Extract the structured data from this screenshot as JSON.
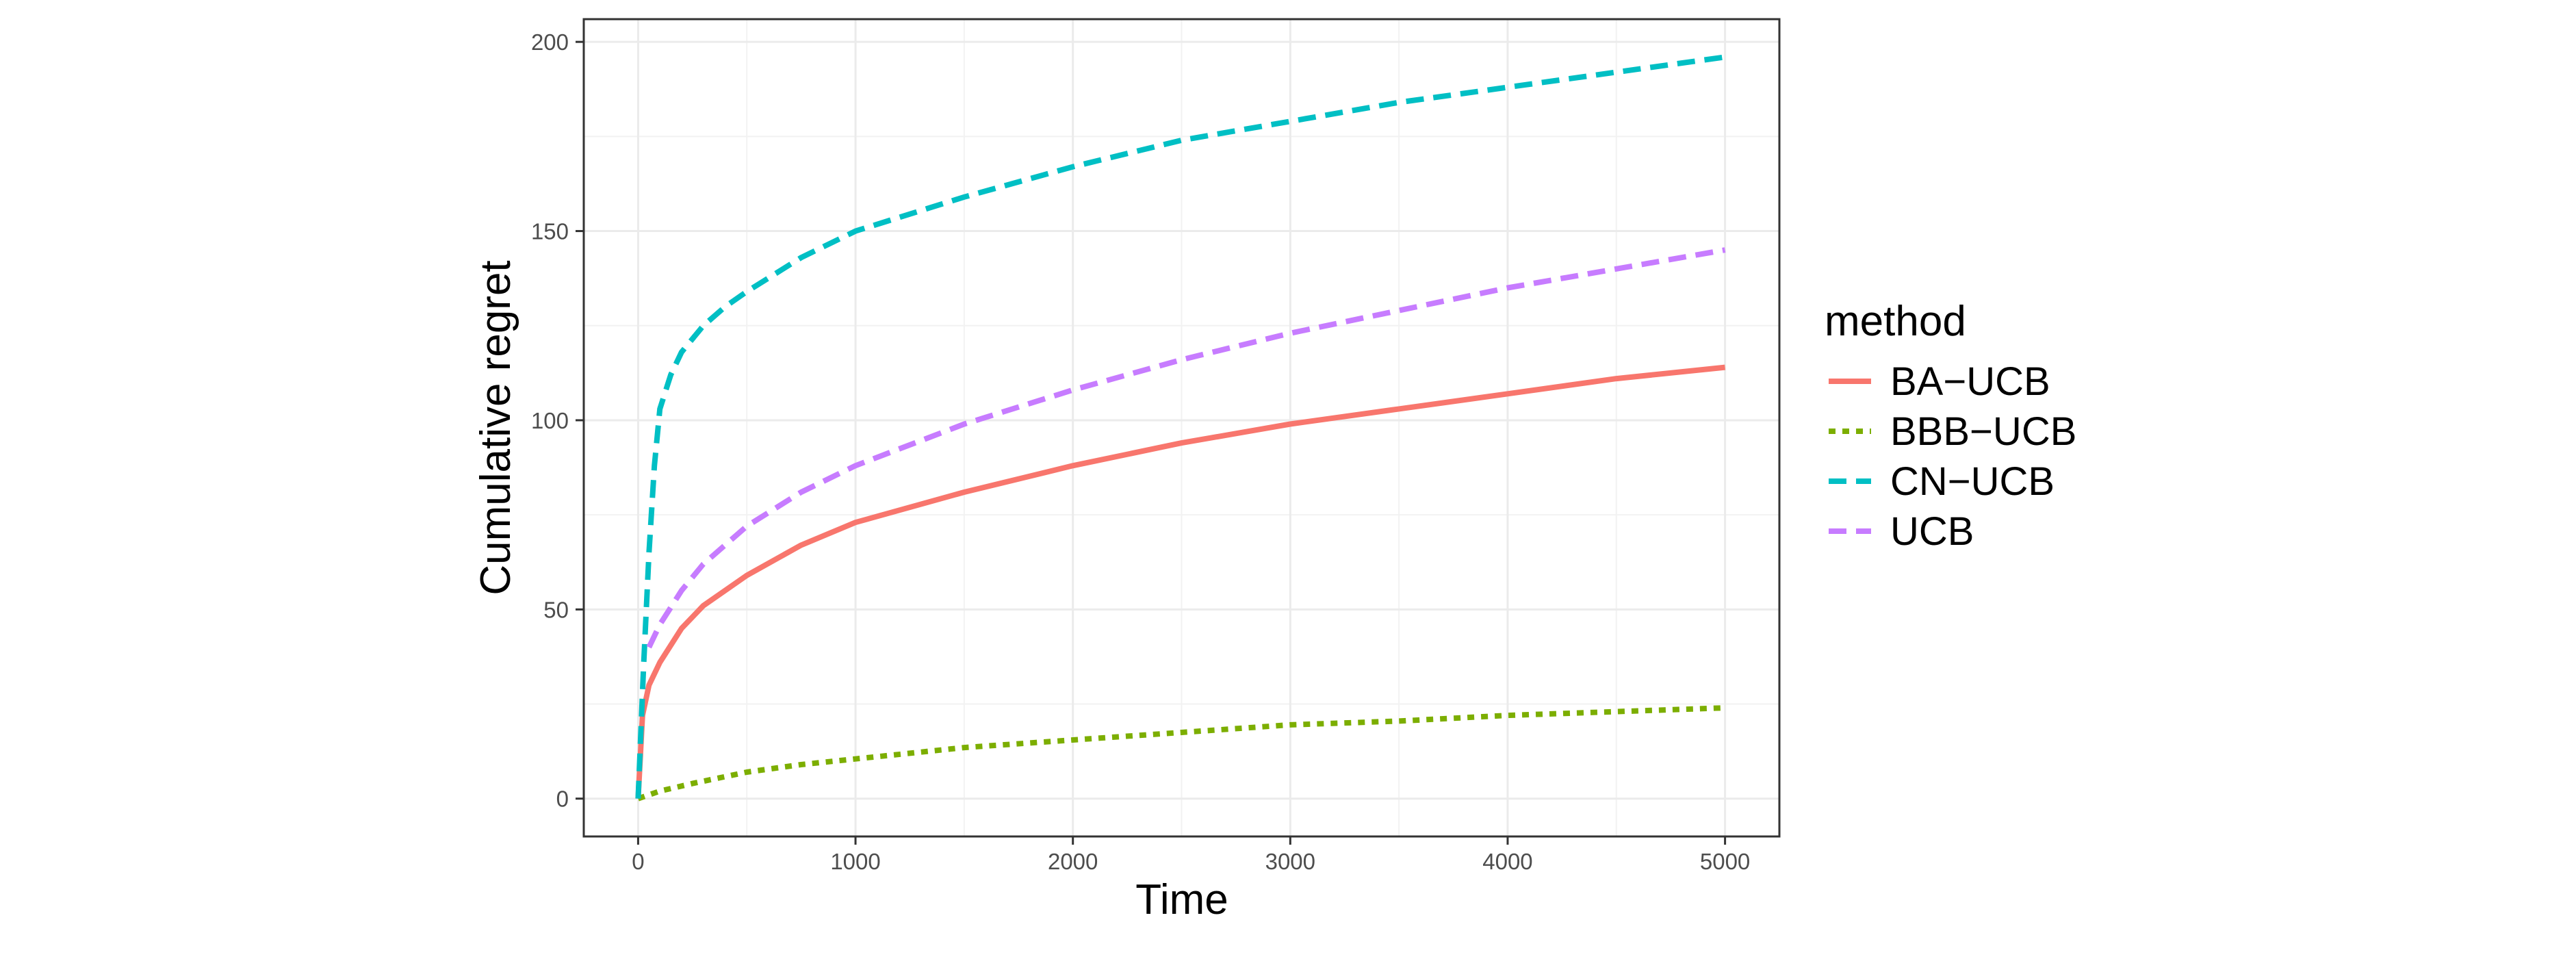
{
  "chart_data": {
    "type": "line",
    "title": "",
    "xlabel": "Time",
    "ylabel": "Cumulative regret",
    "xlim": [
      -250,
      5250
    ],
    "ylim": [
      -10,
      206
    ],
    "x_ticks": [
      0,
      1000,
      2000,
      3000,
      4000,
      5000
    ],
    "x_tick_labels": [
      "0",
      "1000",
      "2000",
      "3000",
      "4000",
      "5000"
    ],
    "y_ticks": [
      0,
      50,
      100,
      150,
      200
    ],
    "y_tick_labels": [
      "0",
      "50",
      "100",
      "150",
      "200"
    ],
    "grid": true,
    "legend": {
      "title": "method",
      "position": "right"
    },
    "series": [
      {
        "name": "BA−UCB",
        "color": "#F8766D",
        "dash": "solid",
        "x": [
          0,
          20,
          50,
          100,
          200,
          300,
          500,
          750,
          1000,
          1500,
          2000,
          2500,
          3000,
          3500,
          4000,
          4500,
          5000
        ],
        "y": [
          0,
          22,
          30,
          36,
          45,
          51,
          59,
          67,
          73,
          81,
          88,
          94,
          99,
          103,
          107,
          111,
          114
        ]
      },
      {
        "name": "BBB−UCB",
        "color": "#7CAE00",
        "dash": "dotted",
        "x": [
          0,
          100,
          250,
          500,
          750,
          1000,
          1500,
          2000,
          2500,
          3000,
          3500,
          4000,
          4500,
          5000
        ],
        "y": [
          0,
          2,
          4,
          7,
          9,
          10.5,
          13.5,
          15.5,
          17.5,
          19.5,
          20.5,
          22,
          23,
          24
        ]
      },
      {
        "name": "CN−UCB",
        "color": "#00BFC4",
        "dash": "dashed",
        "x": [
          0,
          25,
          50,
          75,
          100,
          150,
          200,
          300,
          400,
          500,
          750,
          1000,
          1500,
          2000,
          2500,
          3000,
          3500,
          4000,
          4500,
          5000
        ],
        "y": [
          0,
          35,
          65,
          88,
          103,
          112,
          118,
          125,
          130,
          134,
          143,
          150,
          159,
          167,
          174,
          179,
          184,
          188,
          192,
          196
        ]
      },
      {
        "name": "UCB",
        "color": "#C77CFF",
        "dash": "dashed",
        "x": [
          50,
          100,
          200,
          300,
          500,
          750,
          1000,
          1500,
          2000,
          2500,
          3000,
          3500,
          4000,
          4500,
          5000
        ],
        "y": [
          40,
          46,
          55,
          62,
          72,
          81,
          88,
          99,
          108,
          116,
          123,
          129,
          135,
          140,
          145
        ]
      }
    ]
  }
}
